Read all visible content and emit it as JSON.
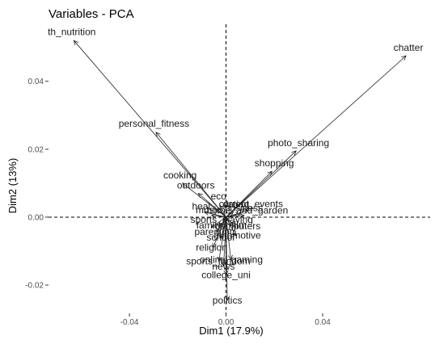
{
  "chart_data": {
    "type": "scatter",
    "title": "Variables - PCA",
    "xlabel": "Dim1 (17.9%)",
    "ylabel": "Dim2 (13%)",
    "xlim": [
      -0.0735,
      0.0845
    ],
    "ylim": [
      -0.0283,
      0.0568
    ],
    "xticks": [
      {
        "value": -0.04,
        "label": "-0.04"
      },
      {
        "value": 0.0,
        "label": "0.00"
      },
      {
        "value": 0.04,
        "label": "0.04"
      }
    ],
    "yticks": [
      {
        "value": -0.02,
        "label": "-0.02"
      },
      {
        "value": 0.0,
        "label": "0.00"
      },
      {
        "value": 0.02,
        "label": "0.02"
      },
      {
        "value": 0.04,
        "label": "0.04"
      }
    ],
    "reference_lines": {
      "x": 0,
      "y": 0
    },
    "grid": false,
    "variables": [
      {
        "name": "health_nutrition",
        "label": "th_nutrition",
        "x": -0.063,
        "y": 0.052
      },
      {
        "name": "chatter",
        "label": "chatter",
        "x": 0.0745,
        "y": 0.0475
      },
      {
        "name": "personal_fitness",
        "label": "personal_fitness",
        "x": -0.029,
        "y": 0.025
      },
      {
        "name": "photo_sharing",
        "label": "photo_sharing",
        "x": 0.029,
        "y": 0.0195
      },
      {
        "name": "shopping",
        "label": "shopping",
        "x": 0.019,
        "y": 0.0135
      },
      {
        "name": "cooking",
        "label": "cooking",
        "x": -0.018,
        "y": 0.01
      },
      {
        "name": "outdoors",
        "label": "outdoors",
        "x": -0.0115,
        "y": 0.007
      },
      {
        "name": "eco",
        "label": "eco",
        "x": -0.0025,
        "y": 0.0035
      },
      {
        "name": "current_events",
        "label": "current_events",
        "x": 0.009,
        "y": 0.002
      },
      {
        "name": "health",
        "label": "heal",
        "x": -0.009,
        "y": 0.0015
      },
      {
        "name": "dating",
        "label": "dating",
        "x": 0.003,
        "y": 0.0015
      },
      {
        "name": "business",
        "label": "business",
        "x": 0.006,
        "y": 0.001
      },
      {
        "name": "music",
        "label": "music",
        "x": -0.006,
        "y": 0.0005
      },
      {
        "name": "home_and_garden",
        "label": "home_and_garden",
        "x": 0.0075,
        "y": 0.0005
      },
      {
        "name": "sports_playing",
        "label": "sports_playing",
        "x": -0.001,
        "y": -0.001
      },
      {
        "name": "tv_film",
        "label": "tv_film",
        "x": 0.002,
        "y": -0.0025
      },
      {
        "name": "computers",
        "label": "computers",
        "x": 0.004,
        "y": -0.003
      },
      {
        "name": "family",
        "label": "family",
        "x": -0.006,
        "y": -0.003
      },
      {
        "name": "parenting",
        "label": "parenting",
        "x": -0.004,
        "y": -0.0045
      },
      {
        "name": "automotive",
        "label": "automotive",
        "x": 0.004,
        "y": -0.0055
      },
      {
        "name": "school",
        "label": "school",
        "x": -0.002,
        "y": -0.006
      },
      {
        "name": "religion",
        "label": "religion",
        "x": -0.0055,
        "y": -0.009
      },
      {
        "name": "online_gaming",
        "label": "online_gaming",
        "x": 0.002,
        "y": -0.0125
      },
      {
        "name": "sports_fandom",
        "label": "sports_fandom",
        "x": -0.003,
        "y": -0.013
      },
      {
        "name": "news",
        "label": "news",
        "x": -0.001,
        "y": -0.0145
      },
      {
        "name": "college_uni",
        "label": "college_uni",
        "x": 0.0,
        "y": -0.017
      },
      {
        "name": "politics",
        "label": "politics",
        "x": 0.0005,
        "y": -0.0245
      }
    ]
  }
}
